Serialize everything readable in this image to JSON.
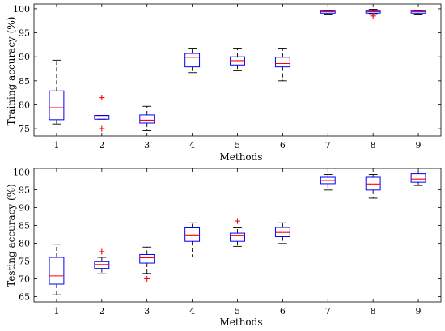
{
  "chart_data": [
    {
      "type": "box",
      "xlabel": "Methods",
      "ylabel": "Training accuracy (%)",
      "ylim": [
        73.5,
        101
      ],
      "yticks": [
        75,
        80,
        85,
        90,
        95,
        100
      ],
      "categories": [
        "1",
        "2",
        "3",
        "4",
        "5",
        "6",
        "7",
        "8",
        "9"
      ],
      "colors": {
        "box": "#0000ff",
        "median": "#ff0000",
        "whisker": "#000000",
        "outlier": "#ff0000"
      },
      "boxes": [
        {
          "q1": 76.9,
          "median": 79.4,
          "q3": 82.9,
          "whisker_low": 76.0,
          "whisker_high": 89.3,
          "outliers": []
        },
        {
          "q1": 77.0,
          "median": 77.5,
          "q3": 77.8,
          "whisker_low": 77.0,
          "whisker_high": 77.8,
          "outliers": [
            75.0,
            81.5
          ]
        },
        {
          "q1": 76.2,
          "median": 76.8,
          "q3": 77.9,
          "whisker_low": 74.6,
          "whisker_high": 79.7,
          "outliers": []
        },
        {
          "q1": 87.9,
          "median": 89.9,
          "q3": 90.7,
          "whisker_low": 86.7,
          "whisker_high": 91.8,
          "outliers": []
        },
        {
          "q1": 88.3,
          "median": 89.2,
          "q3": 90.0,
          "whisker_low": 87.1,
          "whisker_high": 91.8,
          "outliers": []
        },
        {
          "q1": 87.9,
          "median": 88.6,
          "q3": 89.9,
          "whisker_low": 85.0,
          "whisker_high": 91.8,
          "outliers": []
        },
        {
          "q1": 99.1,
          "median": 99.4,
          "q3": 99.7,
          "whisker_low": 98.9,
          "whisker_high": 99.7,
          "outliers": []
        },
        {
          "q1": 99.1,
          "median": 99.4,
          "q3": 99.7,
          "whisker_low": 99.0,
          "whisker_high": 99.9,
          "outliers": [
            98.5
          ]
        },
        {
          "q1": 99.1,
          "median": 99.4,
          "q3": 99.7,
          "whisker_low": 98.9,
          "whisker_high": 99.7,
          "outliers": []
        }
      ]
    },
    {
      "type": "box",
      "xlabel": "Methods",
      "ylabel": "Testing accuracy (%)",
      "ylim": [
        63.5,
        101
      ],
      "yticks": [
        65,
        70,
        75,
        80,
        85,
        90,
        95,
        100
      ],
      "categories": [
        "1",
        "2",
        "3",
        "4",
        "5",
        "6",
        "7",
        "8",
        "9"
      ],
      "colors": {
        "box": "#0000ff",
        "median": "#ff0000",
        "whisker": "#000000",
        "outlier": "#ff0000"
      },
      "boxes": [
        {
          "q1": 68.5,
          "median": 70.8,
          "q3": 76.0,
          "whisker_low": 65.5,
          "whisker_high": 79.7,
          "outliers": []
        },
        {
          "q1": 72.9,
          "median": 74.0,
          "q3": 74.8,
          "whisker_low": 71.4,
          "whisker_high": 76.0,
          "outliers": [
            77.6
          ]
        },
        {
          "q1": 74.4,
          "median": 75.9,
          "q3": 76.8,
          "whisker_low": 71.5,
          "whisker_high": 78.9,
          "outliers": [
            70.0
          ]
        },
        {
          "q1": 80.5,
          "median": 82.3,
          "q3": 84.3,
          "whisker_low": 76.1,
          "whisker_high": 85.7,
          "outliers": []
        },
        {
          "q1": 80.5,
          "median": 82.2,
          "q3": 82.8,
          "whisker_low": 79.1,
          "whisker_high": 84.3,
          "outliers": [
            86.2
          ]
        },
        {
          "q1": 81.8,
          "median": 83.0,
          "q3": 84.4,
          "whisker_low": 79.9,
          "whisker_high": 85.7,
          "outliers": []
        },
        {
          "q1": 96.7,
          "median": 97.6,
          "q3": 98.5,
          "whisker_low": 94.9,
          "whisker_high": 99.3,
          "outliers": []
        },
        {
          "q1": 94.9,
          "median": 96.6,
          "q3": 98.5,
          "whisker_low": 92.6,
          "whisker_high": 99.3,
          "outliers": []
        },
        {
          "q1": 97.1,
          "median": 98.0,
          "q3": 99.5,
          "whisker_low": 96.2,
          "whisker_high": 100.0,
          "outliers": []
        }
      ]
    }
  ]
}
